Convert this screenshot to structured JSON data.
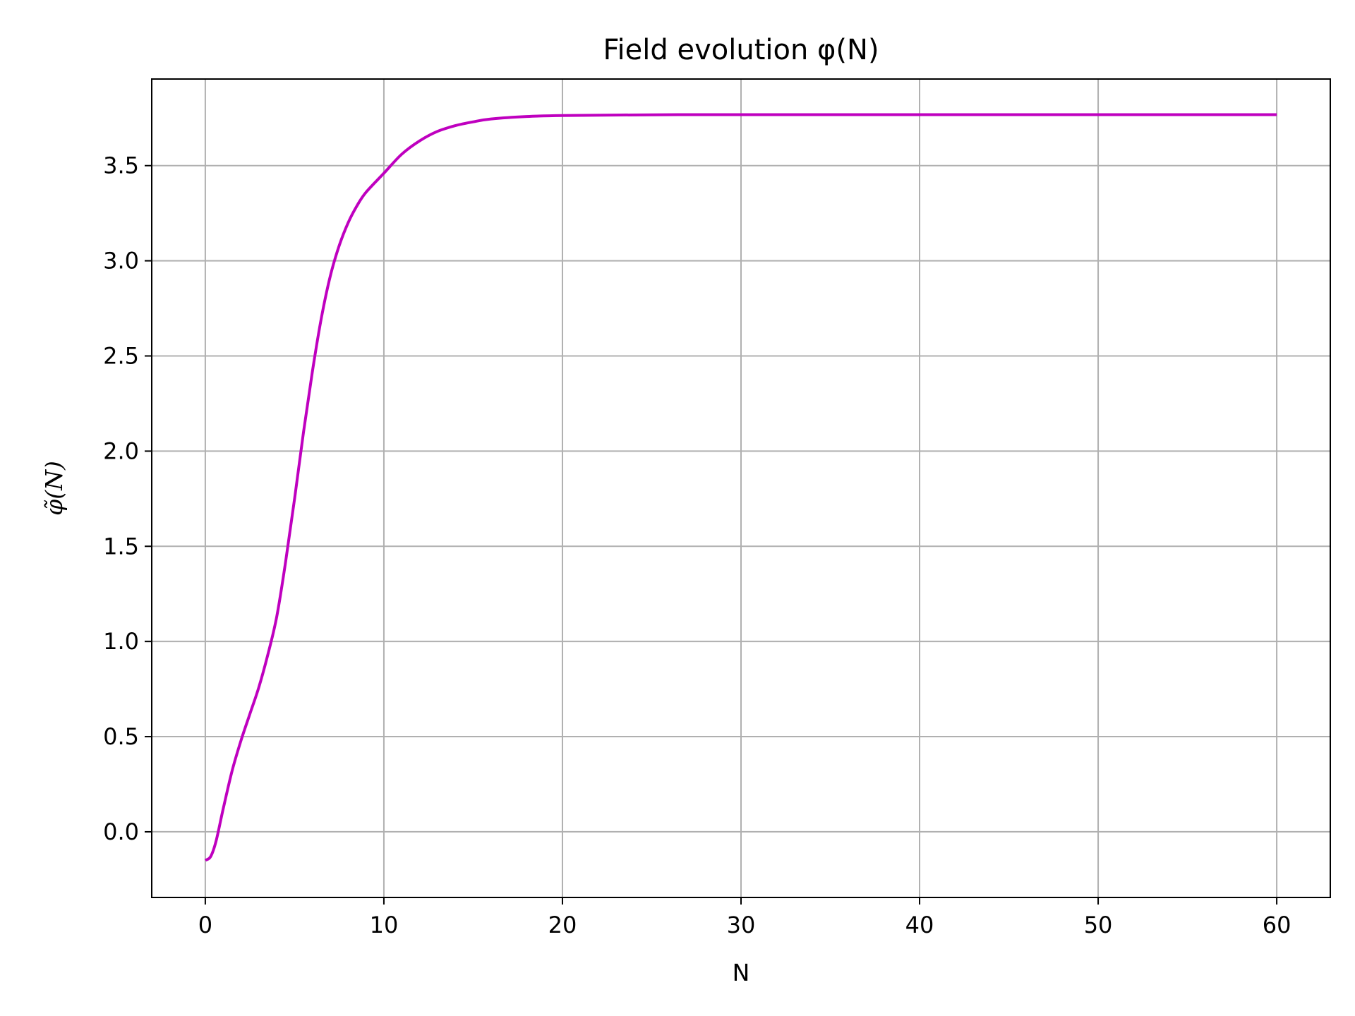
{
  "chart_data": {
    "type": "line",
    "title": "Field evolution φ(N)",
    "xlabel": "N",
    "ylabel": "φ̃(N)",
    "xlim": [
      -3,
      63
    ],
    "ylim": [
      -0.345,
      3.955
    ],
    "xticks": [
      0,
      10,
      20,
      30,
      40,
      50,
      60
    ],
    "xtick_labels": [
      "0",
      "10",
      "20",
      "30",
      "40",
      "50",
      "60"
    ],
    "yticks": [
      0.0,
      0.5,
      1.0,
      1.5,
      2.0,
      2.5,
      3.0,
      3.5
    ],
    "ytick_labels": [
      "0.0",
      "0.5",
      "1.0",
      "1.5",
      "2.0",
      "2.5",
      "3.0",
      "3.5"
    ],
    "grid": true,
    "series": [
      {
        "color": "#bf00bf",
        "x": [
          0,
          0.3,
          0.6,
          1,
          1.5,
          2,
          2.5,
          3,
          3.5,
          4,
          4.5,
          5,
          5.5,
          6,
          6.5,
          7,
          7.5,
          8,
          8.5,
          9,
          10,
          11,
          12,
          13,
          14,
          15,
          16,
          18,
          20,
          25,
          30,
          40,
          50,
          60
        ],
        "y": [
          -0.15,
          -0.13,
          -0.05,
          0.12,
          0.32,
          0.48,
          0.62,
          0.76,
          0.93,
          1.13,
          1.42,
          1.75,
          2.1,
          2.42,
          2.7,
          2.92,
          3.08,
          3.2,
          3.29,
          3.36,
          3.46,
          3.56,
          3.63,
          3.68,
          3.71,
          3.73,
          3.745,
          3.758,
          3.763,
          3.767,
          3.768,
          3.768,
          3.768,
          3.768
        ]
      }
    ]
  }
}
